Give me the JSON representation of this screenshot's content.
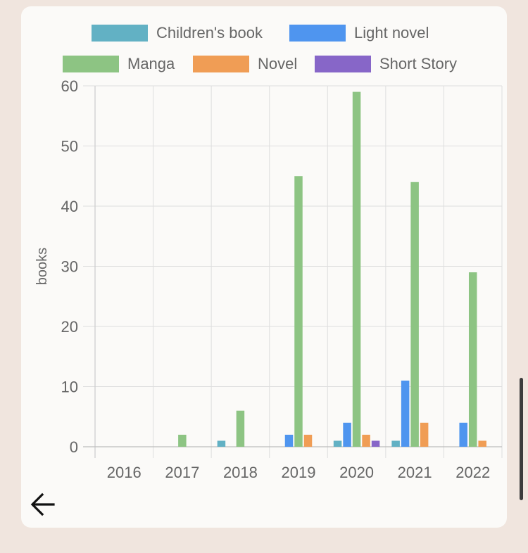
{
  "chart_data": {
    "type": "bar",
    "categories": [
      "2016",
      "2017",
      "2018",
      "2019",
      "2020",
      "2021",
      "2022"
    ],
    "series": [
      {
        "name": "Children's book",
        "color": "#62b1c4",
        "values": [
          0,
          0,
          1,
          0,
          1,
          1,
          0
        ]
      },
      {
        "name": "Light novel",
        "color": "#4f95ef",
        "values": [
          0,
          0,
          0,
          2,
          4,
          11,
          4
        ]
      },
      {
        "name": "Manga",
        "color": "#8dc483",
        "values": [
          0,
          2,
          6,
          45,
          59,
          44,
          29
        ]
      },
      {
        "name": "Novel",
        "color": "#f09d55",
        "values": [
          0,
          0,
          0,
          2,
          2,
          4,
          1
        ]
      },
      {
        "name": "Short Story",
        "color": "#8766c8",
        "values": [
          0,
          0,
          0,
          0,
          1,
          0,
          0
        ]
      }
    ],
    "ylabel": "books",
    "ylim": [
      0,
      60
    ],
    "yticks": [
      "0",
      "10",
      "20",
      "30",
      "40",
      "50",
      "60"
    ],
    "grid": true,
    "legend_position": "top"
  },
  "navigation": {
    "back_icon": "arrow-left-icon"
  },
  "colors": {
    "background": "#f0e5de",
    "card": "#fbfaf8",
    "grid": "#dddddd",
    "text": "#666666"
  }
}
